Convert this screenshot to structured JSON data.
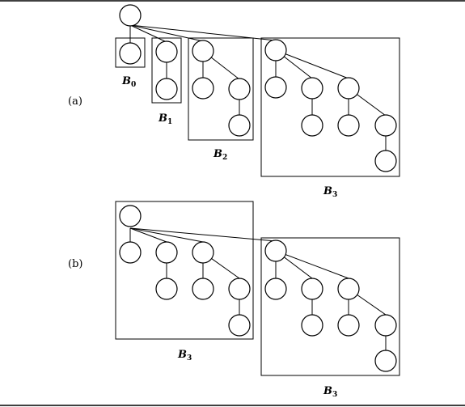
{
  "figure": {
    "part_a": "(a)",
    "part_b": "(b)",
    "labels_a": [
      {
        "main": "B",
        "sub": "0"
      },
      {
        "main": "B",
        "sub": "1"
      },
      {
        "main": "B",
        "sub": "2"
      },
      {
        "main": "B",
        "sub": "3"
      }
    ],
    "labels_b": [
      {
        "main": "B",
        "sub": "3"
      },
      {
        "main": "B",
        "sub": "3"
      }
    ]
  }
}
